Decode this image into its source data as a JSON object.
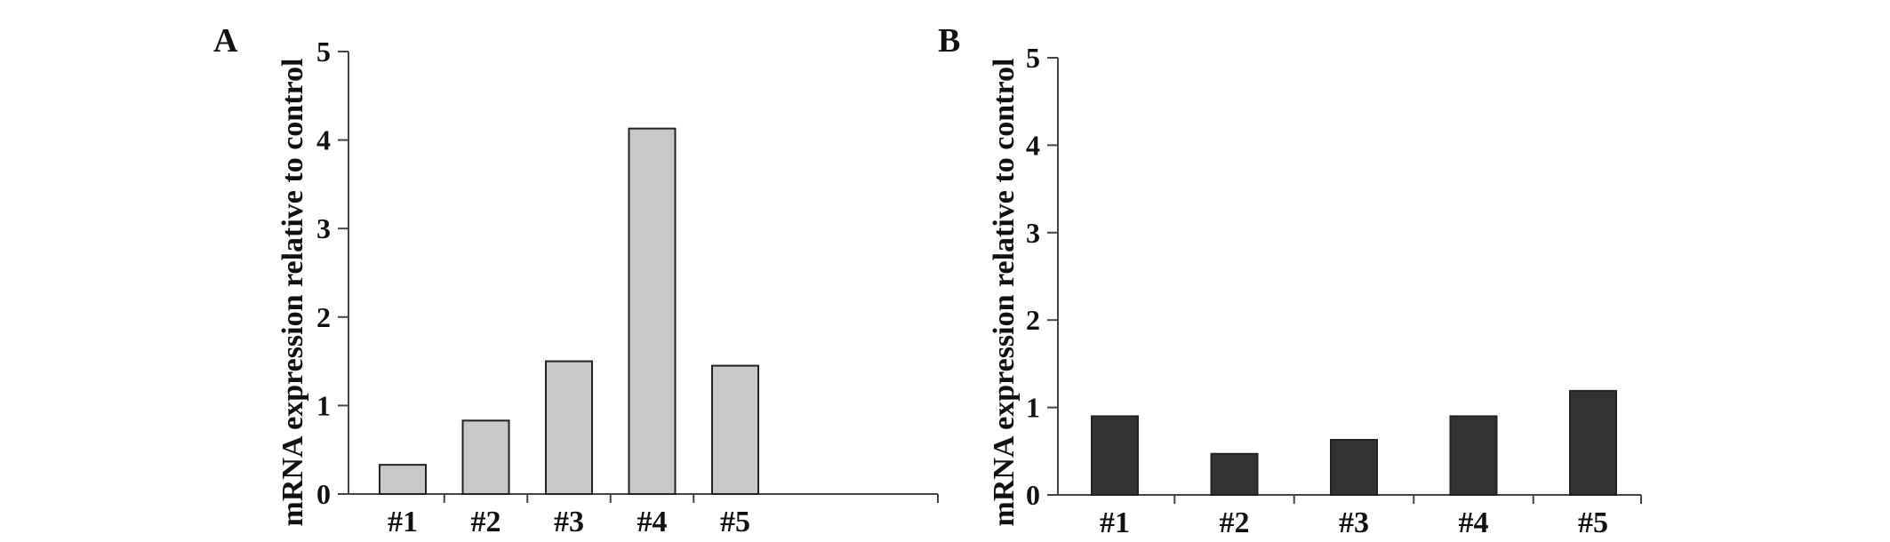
{
  "chart_data": [
    {
      "type": "bar",
      "panel": "A",
      "categories": [
        "#1",
        "#2",
        "#3",
        "#4",
        "#5"
      ],
      "values": [
        0.33,
        0.83,
        1.5,
        4.13,
        1.45
      ],
      "ylabel": "mRNA expression relative to control",
      "xlabel": "",
      "ylim": [
        0,
        5
      ],
      "yticks": [
        "0",
        "1",
        "2",
        "3",
        "4",
        "5"
      ],
      "bar_color": "#c8c8c8",
      "grid": false
    },
    {
      "type": "bar",
      "panel": "B",
      "categories": [
        "#1",
        "#2",
        "#3",
        "#4",
        "#5"
      ],
      "values": [
        0.9,
        0.47,
        0.63,
        0.9,
        1.19
      ],
      "ylabel": "mRNA expression relative to control",
      "xlabel": "",
      "ylim": [
        0,
        5
      ],
      "yticks": [
        "0",
        "1",
        "2",
        "3",
        "4",
        "5"
      ],
      "bar_color": "#333333",
      "grid": false
    }
  ]
}
